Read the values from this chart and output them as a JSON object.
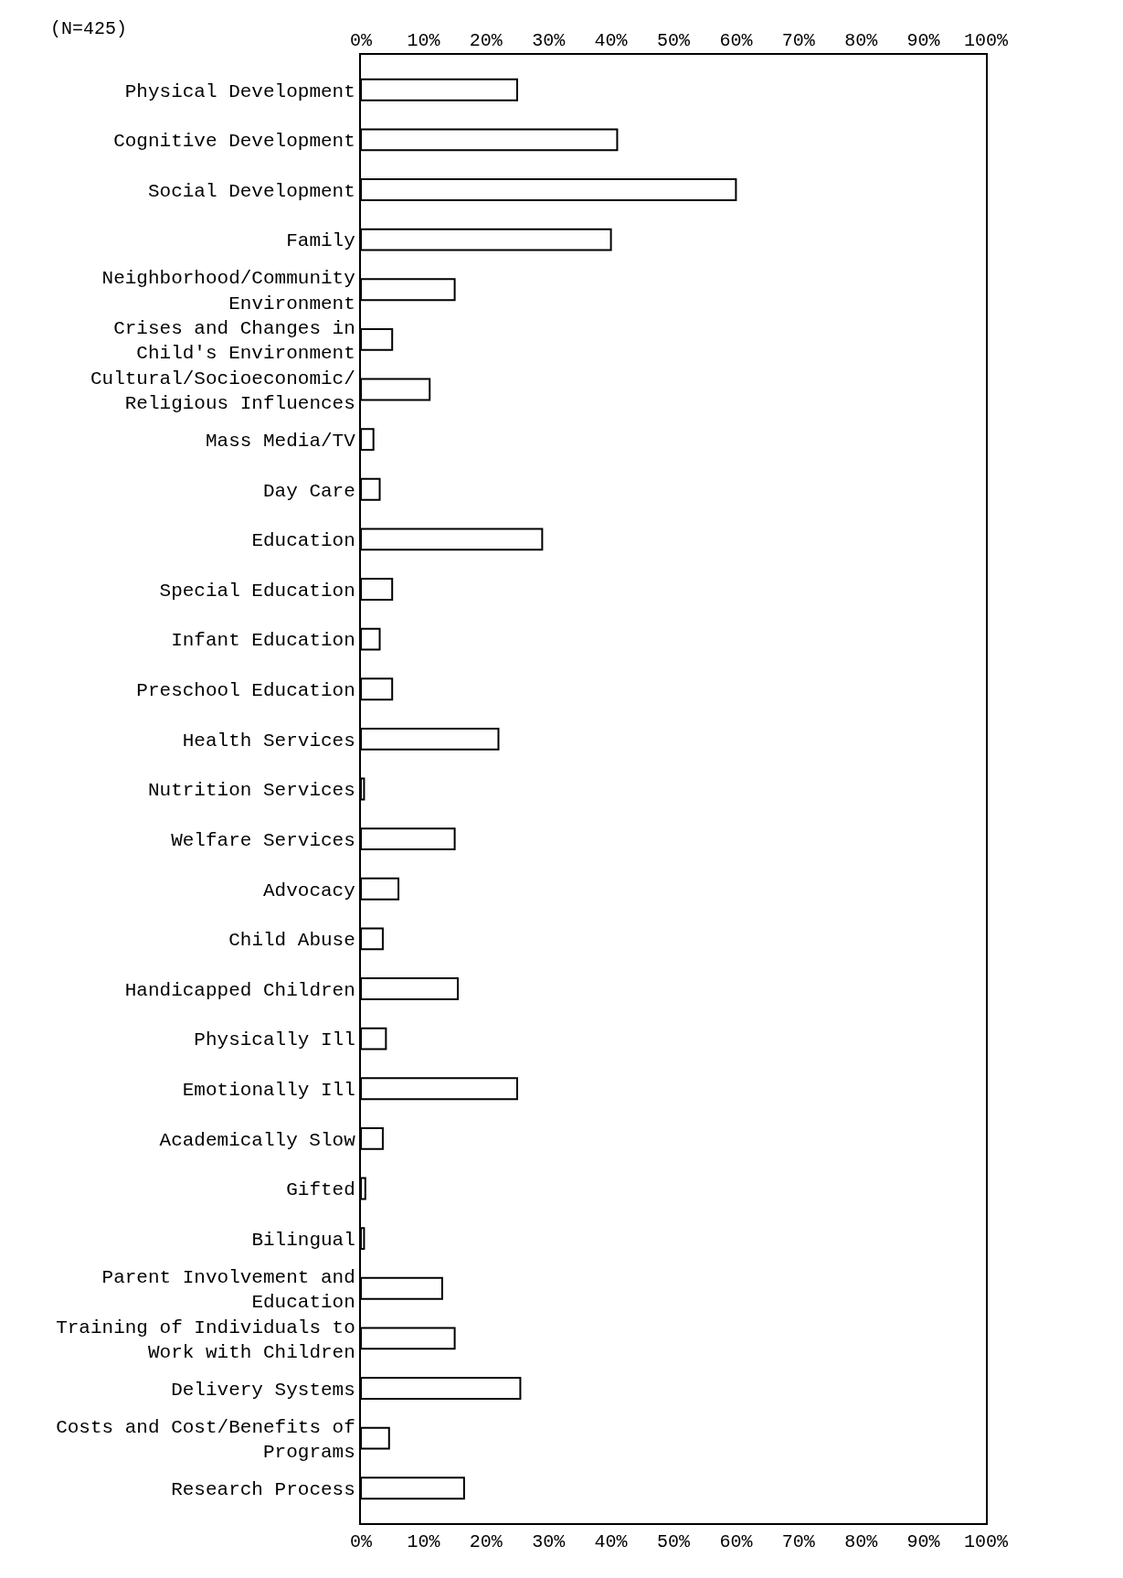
{
  "chart_data": {
    "type": "bar",
    "orientation": "horizontal",
    "subtitle": "(N=425)",
    "categories": [
      "Physical Development",
      "Cognitive Development",
      "Social Development",
      "Family",
      "Neighborhood/Community Environment",
      "Crises and Changes in Child's Environment",
      "Cultural/Socioeconomic/ Religious Influences",
      "Mass Media/TV",
      "Day Care",
      "Education",
      "Special Education",
      "Infant Education",
      "Preschool Education",
      "Health Services",
      "Nutrition Services",
      "Welfare Services",
      "Advocacy",
      "Child Abuse",
      "Handicapped Children",
      "Physically Ill",
      "Emotionally Ill",
      "Academically Slow",
      "Gifted",
      "Bilingual",
      "Parent Involvement and Education",
      "Training of Individuals to Work with Children",
      "Delivery Systems",
      "Costs and Cost/Benefits of Programs",
      "Research Process"
    ],
    "values": [
      25,
      41,
      60,
      40,
      15,
      5,
      11,
      2,
      3,
      29,
      5,
      3,
      5,
      22,
      0.5,
      15,
      6,
      3.5,
      15.5,
      4,
      25,
      3.5,
      0.7,
      0.5,
      13,
      15,
      25.5,
      4.5,
      16.5
    ],
    "color": "#ffffff",
    "xlim": [
      0,
      100
    ],
    "xticks": [
      {
        "value": 0,
        "label": "0%"
      },
      {
        "value": 10,
        "label": "10%"
      },
      {
        "value": 20,
        "label": "20%"
      },
      {
        "value": 30,
        "label": "30%"
      },
      {
        "value": 40,
        "label": "40%"
      },
      {
        "value": 50,
        "label": "50%"
      },
      {
        "value": 60,
        "label": "60%"
      },
      {
        "value": 70,
        "label": "70%"
      },
      {
        "value": 80,
        "label": "80%"
      },
      {
        "value": 90,
        "label": "90%"
      },
      {
        "value": 100,
        "label": "100%"
      }
    ],
    "x2lim": [
      0,
      100
    ],
    "x2ticks": [
      {
        "value": 0,
        "label": "0%"
      },
      {
        "value": 10,
        "label": "10%"
      },
      {
        "value": 20,
        "label": "20%"
      },
      {
        "value": 30,
        "label": "30%"
      },
      {
        "value": 40,
        "label": "40%"
      },
      {
        "value": 50,
        "label": "50%"
      },
      {
        "value": 60,
        "label": "60%"
      },
      {
        "value": 70,
        "label": "70%"
      },
      {
        "value": 80,
        "label": "80%"
      },
      {
        "value": 90,
        "label": "90%"
      },
      {
        "value": 100,
        "label": "100%"
      }
    ],
    "grid": false
  }
}
